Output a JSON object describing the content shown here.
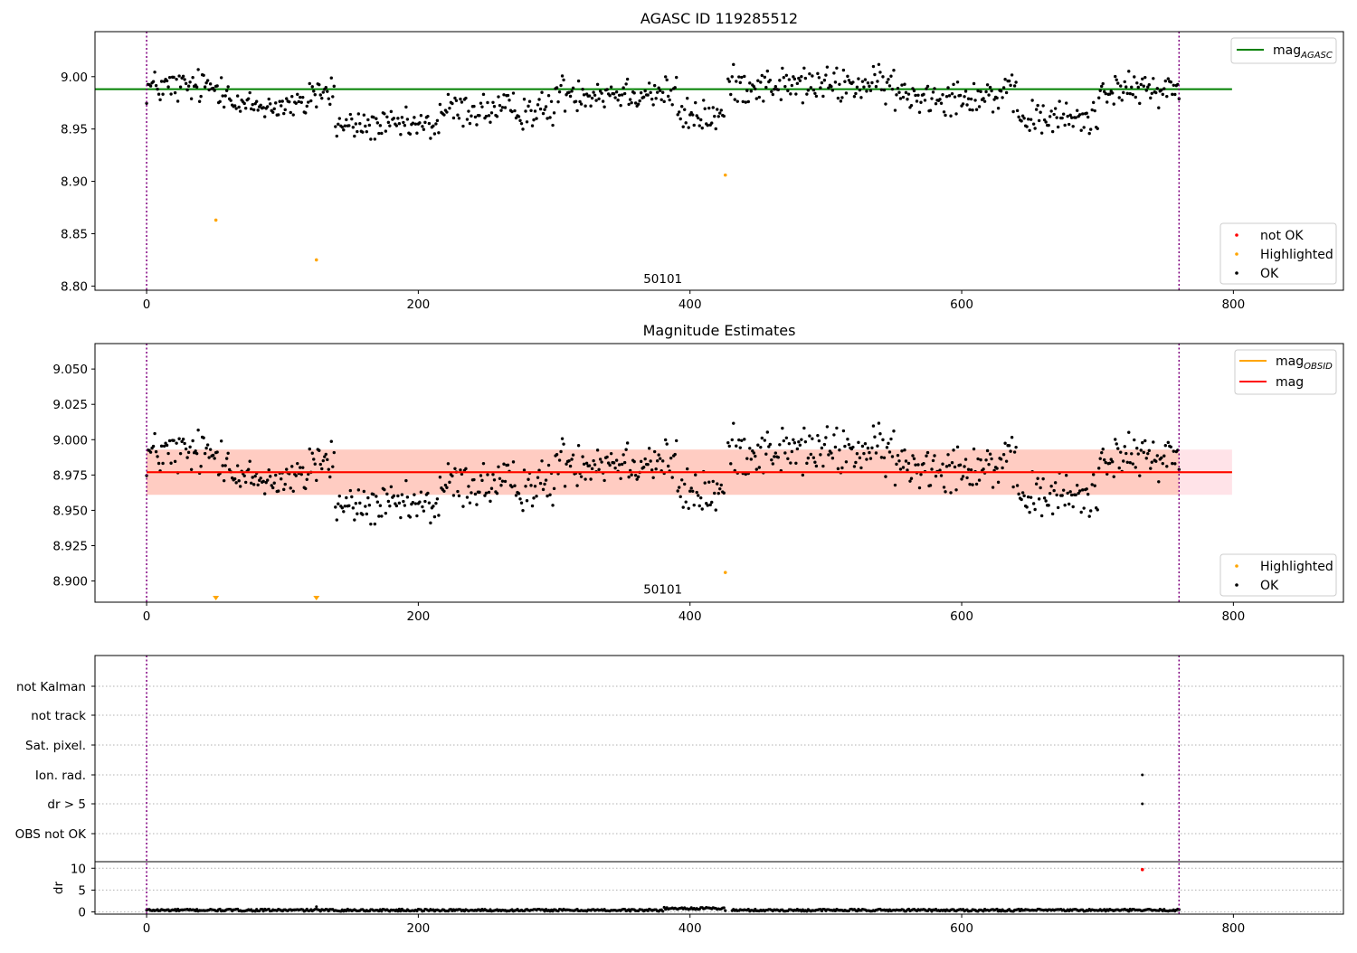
{
  "chart_data": [
    {
      "type": "scatter",
      "title": "AGASC ID 119285512",
      "xlabel": "",
      "ylabel": "",
      "xlim": [
        -38,
        881
      ],
      "ylim": [
        8.796,
        9.043
      ],
      "x_ticks": [
        0,
        200,
        400,
        600,
        800
      ],
      "y_ticks": [
        8.8,
        8.85,
        8.9,
        8.95,
        9.0
      ],
      "y_tick_labels": [
        "8.80",
        "8.85",
        "8.90",
        "8.95",
        "9.00"
      ],
      "vlines": [
        0,
        760
      ],
      "vline_color": "#800080",
      "hline": {
        "name": "mag",
        "subscript": "AGASC",
        "y": 8.988,
        "x": [
          -38,
          799
        ],
        "color": "#008000"
      },
      "annotation": {
        "text": "50101",
        "x": 380,
        "y": 8.803
      },
      "series": [
        {
          "name": "not OK",
          "color": "#ff0000",
          "points": []
        },
        {
          "name": "Highlighted",
          "color": "#ffa500",
          "points": [
            [
              51,
              8.863
            ],
            [
              125,
              8.825
            ],
            [
              426,
              8.906
            ]
          ]
        },
        {
          "name": "OK",
          "color": "#000000",
          "points": "generated-from-segments"
        }
      ],
      "ok_segments": [
        {
          "x0": 0,
          "x1": 62,
          "level": 8.99,
          "noise": 0.012
        },
        {
          "x0": 63,
          "x1": 118,
          "level": 8.972,
          "noise": 0.01
        },
        {
          "x0": 119,
          "x1": 138,
          "level": 8.985,
          "noise": 0.012
        },
        {
          "x0": 139,
          "x1": 215,
          "level": 8.953,
          "noise": 0.01
        },
        {
          "x0": 216,
          "x1": 300,
          "level": 8.968,
          "noise": 0.012
        },
        {
          "x0": 301,
          "x1": 390,
          "level": 8.985,
          "noise": 0.012
        },
        {
          "x0": 391,
          "x1": 425,
          "level": 8.962,
          "noise": 0.012
        },
        {
          "x0": 428,
          "x1": 550,
          "level": 8.992,
          "noise": 0.012
        },
        {
          "x0": 551,
          "x1": 640,
          "level": 8.982,
          "noise": 0.012
        },
        {
          "x0": 641,
          "x1": 700,
          "level": 8.96,
          "noise": 0.012
        },
        {
          "x0": 701,
          "x1": 760,
          "level": 8.988,
          "noise": 0.01
        }
      ],
      "legend_upper": "upper right",
      "legend_lower": "lower right"
    },
    {
      "type": "scatter",
      "title": "Magnitude Estimates",
      "xlabel": "",
      "ylabel": "",
      "xlim": [
        -38,
        881
      ],
      "ylim": [
        8.885,
        9.068
      ],
      "x_ticks": [
        0,
        200,
        400,
        600,
        800
      ],
      "y_ticks": [
        8.9,
        8.925,
        8.95,
        8.975,
        9.0,
        9.025,
        9.05
      ],
      "y_tick_labels": [
        "8.900",
        "8.925",
        "8.950",
        "8.975",
        "9.000",
        "9.025",
        "9.050"
      ],
      "vlines": [
        0,
        760
      ],
      "vline_color": "#800080",
      "lines": [
        {
          "name": "mag",
          "subscript": "OBSID",
          "color": "#ffa500",
          "y": 8.977,
          "x": [
            0,
            799
          ]
        },
        {
          "name": "mag",
          "subscript": "",
          "color": "#ff0000",
          "y": 8.977,
          "x": [
            0,
            799
          ]
        }
      ],
      "bands": [
        {
          "color": "#ffc0cb",
          "opacity": 0.45,
          "y0": 8.961,
          "y1": 8.993,
          "x": [
            0,
            799
          ]
        },
        {
          "color": "#ffa07a",
          "opacity": 0.35,
          "y0": 8.961,
          "y1": 8.993,
          "x": [
            0,
            760
          ]
        }
      ],
      "annotation": {
        "text": "50101",
        "x": 380,
        "y": 8.891
      },
      "series": [
        {
          "name": "Highlighted",
          "color": "#ffa500",
          "points": [
            [
              426,
              8.906
            ]
          ],
          "below_axis_markers": [
            51,
            125
          ]
        },
        {
          "name": "OK",
          "color": "#000000",
          "points": "same-as-panel-1"
        }
      ],
      "legend_upper": "upper right",
      "legend_lower": "lower right"
    },
    {
      "type": "scatter",
      "title": "",
      "xlim": [
        -38,
        881
      ],
      "categories": [
        "not Kalman",
        "not track",
        "Sat. pixel.",
        "Ion. rad.",
        "dr > 5",
        "OBS not OK"
      ],
      "vlines": [
        0,
        760
      ],
      "vline_color": "#800080",
      "flags": [
        {
          "category": "Ion. rad.",
          "x": [
            733
          ]
        },
        {
          "category": "dr > 5",
          "x": [
            733
          ]
        }
      ],
      "sub_panel": {
        "ylabel": "dr",
        "ylim": [
          -0.5,
          11.5
        ],
        "y_ticks": [
          0,
          5,
          10
        ],
        "y_tick_labels": [
          "0",
          "5",
          "10"
        ],
        "x_ticks": [
          0,
          200,
          400,
          600,
          800
        ],
        "baseline": 0.4,
        "gap": [
          427,
          430
        ],
        "outliers": [
          [
            125,
            1.2
          ]
        ],
        "not_ok": [
          [
            733,
            9.7
          ]
        ]
      }
    }
  ]
}
